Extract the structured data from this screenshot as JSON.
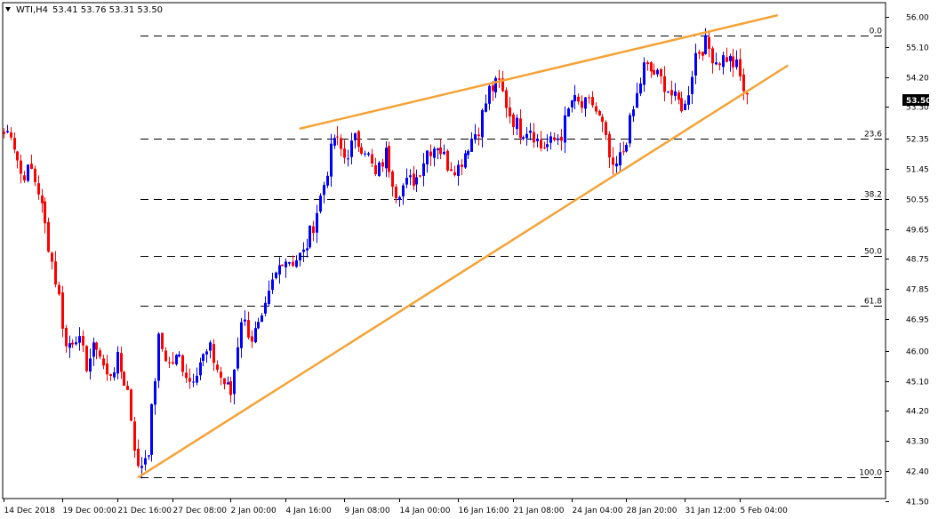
{
  "header": {
    "symbol": "WTI,H4",
    "ohlc": "53.41 53.76 53.31 53.50"
  },
  "chart_data": {
    "type": "candlestick",
    "symbol": "WTI",
    "timeframe": "H4",
    "ylim": [
      41.6,
      56.4
    ],
    "y_ticks": [
      "56.00",
      "55.10",
      "54.20",
      "53.30",
      "52.35",
      "51.45",
      "50.55",
      "49.65",
      "48.75",
      "47.85",
      "46.95",
      "46.00",
      "45.10",
      "44.20",
      "43.30",
      "42.40",
      "41.50"
    ],
    "x_ticks": [
      "14 Dec 2018",
      "19 Dec 00:00",
      "21 Dec 16:00",
      "27 Dec 08:00",
      "2 Jan 00:00",
      "4 Jan 16:00",
      "9 Jan 08:00",
      "14 Jan 00:00",
      "16 Jan 16:00",
      "21 Jan 08:00",
      "24 Jan 04:00",
      "28 Jan 20:00",
      "31 Jan 12:00",
      "5 Feb 04:00"
    ],
    "current_price": "53.50",
    "fib_levels": [
      {
        "label": "0.0",
        "price": 55.45
      },
      {
        "label": "23.6",
        "price": 52.35
      },
      {
        "label": "38.2",
        "price": 50.55
      },
      {
        "label": "50.0",
        "price": 48.85
      },
      {
        "label": "61.8",
        "price": 47.35
      },
      {
        "label": "100.0",
        "price": 42.2
      }
    ],
    "trendlines": [
      {
        "name": "upper",
        "from": {
          "bar": 86,
          "price": 52.65
        },
        "to": {
          "bar": 225,
          "price": 56.05
        }
      },
      {
        "name": "lower",
        "from": {
          "bar": 39,
          "price": 42.2
        },
        "to": {
          "bar": 228,
          "price": 54.55
        }
      }
    ],
    "colors": {
      "up": "#0000ff",
      "down": "#ff0000",
      "trendline": "#f5a236",
      "fib": "#000000",
      "price_tag": "#000000"
    },
    "anchors": [
      [
        0,
        52.5
      ],
      [
        2,
        52.6
      ],
      [
        5,
        51.3
      ],
      [
        8,
        51.4
      ],
      [
        10,
        50.8
      ],
      [
        13,
        49.2
      ],
      [
        16,
        47.6
      ],
      [
        18,
        46.1
      ],
      [
        21,
        46.5
      ],
      [
        24,
        45.6
      ],
      [
        27,
        46.2
      ],
      [
        30,
        45.2
      ],
      [
        33,
        45.7
      ],
      [
        36,
        44.8
      ],
      [
        39,
        42.4
      ],
      [
        42,
        43.1
      ],
      [
        45,
        46.3
      ],
      [
        48,
        45.6
      ],
      [
        51,
        45.8
      ],
      [
        54,
        45.1
      ],
      [
        57,
        45.7
      ],
      [
        60,
        46.0
      ],
      [
        63,
        45.2
      ],
      [
        66,
        44.7
      ],
      [
        69,
        47.0
      ],
      [
        72,
        46.4
      ],
      [
        75,
        46.8
      ],
      [
        78,
        48.0
      ],
      [
        81,
        48.8
      ],
      [
        84,
        48.7
      ],
      [
        87,
        48.9
      ],
      [
        90,
        49.8
      ],
      [
        93,
        51.0
      ],
      [
        96,
        52.4
      ],
      [
        99,
        51.8
      ],
      [
        102,
        52.3
      ],
      [
        105,
        52.1
      ],
      [
        108,
        51.2
      ],
      [
        111,
        51.9
      ],
      [
        114,
        50.8
      ],
      [
        117,
        51.0
      ],
      [
        120,
        51.2
      ],
      [
        123,
        52.0
      ],
      [
        126,
        52.2
      ],
      [
        129,
        51.6
      ],
      [
        132,
        51.5
      ],
      [
        135,
        52.2
      ],
      [
        138,
        52.7
      ],
      [
        141,
        53.8
      ],
      [
        144,
        54.0
      ],
      [
        147,
        53.1
      ],
      [
        150,
        52.6
      ],
      [
        153,
        52.7
      ],
      [
        156,
        52.1
      ],
      [
        159,
        52.2
      ],
      [
        162,
        52.5
      ],
      [
        165,
        53.5
      ],
      [
        168,
        53.3
      ],
      [
        171,
        53.4
      ],
      [
        174,
        52.7
      ],
      [
        177,
        51.3
      ],
      [
        180,
        52.0
      ],
      [
        183,
        53.2
      ],
      [
        186,
        54.5
      ],
      [
        189,
        54.3
      ],
      [
        192,
        54.0
      ],
      [
        195,
        53.5
      ],
      [
        198,
        53.3
      ],
      [
        201,
        54.9
      ],
      [
        204,
        55.2
      ],
      [
        207,
        54.7
      ],
      [
        210,
        54.8
      ],
      [
        213,
        54.5
      ],
      [
        216,
        53.5
      ]
    ]
  }
}
